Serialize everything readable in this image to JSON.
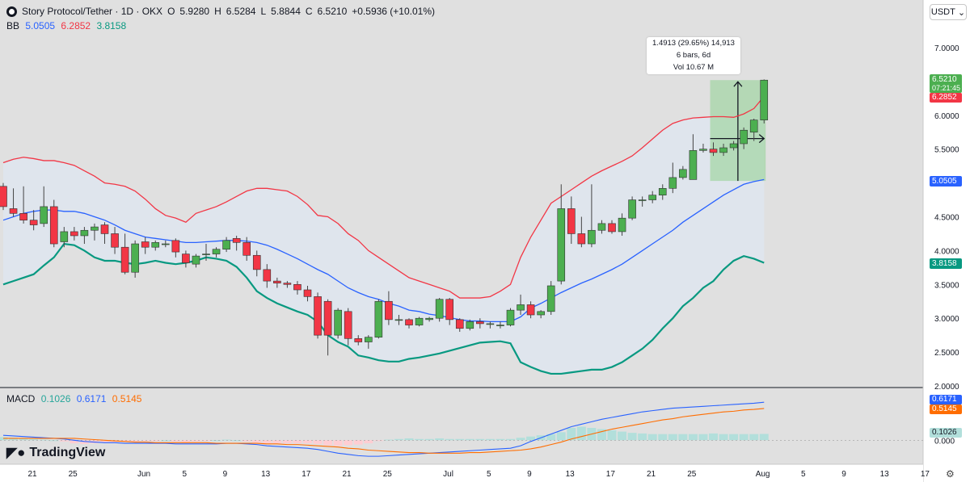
{
  "header": {
    "title": "Story Protocol/Tether · 1D · OKX",
    "open_label": "O",
    "open": "5.9280",
    "high_label": "H",
    "high": "6.5284",
    "low_label": "L",
    "low": "5.8844",
    "close_label": "C",
    "close": "6.5210",
    "change": "+0.5936 (+10.01%)"
  },
  "bb": {
    "label": "BB",
    "basis": "5.0505",
    "upper": "6.2852",
    "lower": "3.8158"
  },
  "macd": {
    "label": "MACD",
    "hist": "0.1026",
    "macd": "0.6171",
    "signal": "0.5145"
  },
  "currency": {
    "label": "USDT"
  },
  "measure": {
    "change": "1.4913 (29.65%) 14,913",
    "bars": "6 bars, 6d",
    "volume": "Vol 10.67 M"
  },
  "price_tags": {
    "close": "6.5210",
    "countdown": "07:21:45",
    "bb_upper": "6.2852",
    "bb_basis": "5.0505",
    "bb_lower": "3.8158",
    "macd": "0.6171",
    "signal": "0.5145",
    "hist": "0.1026"
  },
  "branding": {
    "name": "TradingView"
  },
  "colors": {
    "up": "#4caf50",
    "down": "#f23645",
    "bb_upper": "#f23645",
    "bb_basis": "#2962ff",
    "bb_lower": "#089981",
    "bb_fill": "#dfe6ee",
    "macd": "#2962ff",
    "signal": "#ff6d00",
    "hist_pos": "#26a69a",
    "hist_neg": "#ff5252",
    "measure_fill": "#a5d6a7"
  },
  "chart_data": {
    "type": "candlestick",
    "title": "Story Protocol/Tether · 1D · OKX",
    "price_axis": {
      "ticks": [
        "2.0000",
        "2.5000",
        "3.0000",
        "3.5000",
        "4.0000",
        "4.5000",
        "5.0000",
        "5.5000",
        "6.0000",
        "6.5000",
        "7.0000"
      ],
      "range": [
        2.0,
        7.0
      ]
    },
    "macd_axis": {
      "ticks": [
        "0.000"
      ],
      "range": [
        -0.35,
        0.75
      ]
    },
    "x_ticks": [
      {
        "label": "21",
        "idx": 0
      },
      {
        "label": "25",
        "idx": 4
      },
      {
        "label": "Jun",
        "idx": 11
      },
      {
        "label": "5",
        "idx": 15
      },
      {
        "label": "9",
        "idx": 19
      },
      {
        "label": "13",
        "idx": 23
      },
      {
        "label": "17",
        "idx": 27
      },
      {
        "label": "21",
        "idx": 31
      },
      {
        "label": "25",
        "idx": 35
      },
      {
        "label": "Jul",
        "idx": 41
      },
      {
        "label": "5",
        "idx": 45
      },
      {
        "label": "9",
        "idx": 49
      },
      {
        "label": "13",
        "idx": 53
      },
      {
        "label": "17",
        "idx": 57
      },
      {
        "label": "21",
        "idx": 61
      },
      {
        "label": "25",
        "idx": 65
      },
      {
        "label": "Aug",
        "idx": 72
      },
      {
        "label": "5",
        "idx": 76
      },
      {
        "label": "9",
        "idx": 80
      },
      {
        "label": "13",
        "idx": 84
      },
      {
        "label": "17",
        "idx": 88
      }
    ],
    "candles": [
      [
        4.95,
        4.65,
        5.0,
        4.6
      ],
      [
        4.62,
        4.55,
        4.92,
        4.5
      ],
      [
        4.55,
        4.45,
        4.95,
        4.4
      ],
      [
        4.45,
        4.38,
        4.6,
        4.3
      ],
      [
        4.4,
        4.65,
        4.95,
        4.35
      ],
      [
        4.65,
        4.1,
        4.75,
        4.05
      ],
      [
        4.13,
        4.28,
        4.35,
        4.05
      ],
      [
        4.28,
        4.22,
        4.35,
        4.15
      ],
      [
        4.22,
        4.3,
        4.35,
        4.1
      ],
      [
        4.3,
        4.35,
        4.4,
        4.15
      ],
      [
        4.38,
        4.25,
        4.42,
        4.1
      ],
      [
        4.25,
        4.05,
        4.35,
        3.95
      ],
      [
        4.05,
        3.68,
        4.25,
        3.65
      ],
      [
        3.68,
        4.1,
        4.15,
        3.6
      ],
      [
        4.13,
        4.05,
        4.2,
        3.95
      ],
      [
        4.05,
        4.12,
        4.15,
        4.0
      ],
      [
        4.1,
        4.1,
        4.15,
        4.05
      ],
      [
        4.15,
        3.98,
        4.18,
        3.9
      ],
      [
        3.95,
        3.82,
        4.0,
        3.75
      ],
      [
        3.8,
        3.92,
        3.95,
        3.75
      ],
      [
        3.95,
        3.95,
        4.1,
        3.85
      ],
      [
        3.95,
        4.02,
        4.05,
        3.9
      ],
      [
        4.02,
        4.15,
        4.2,
        3.98
      ],
      [
        4.18,
        4.12,
        4.22,
        4.0
      ],
      [
        4.12,
        3.93,
        4.2,
        3.85
      ],
      [
        3.93,
        3.72,
        4.0,
        3.62
      ],
      [
        3.72,
        3.55,
        3.8,
        3.45
      ],
      [
        3.55,
        3.52,
        3.6,
        3.45
      ],
      [
        3.52,
        3.5,
        3.55,
        3.45
      ],
      [
        3.5,
        3.42,
        3.55,
        3.35
      ],
      [
        3.42,
        3.32,
        3.48,
        3.25
      ],
      [
        3.32,
        2.75,
        3.38,
        2.7
      ],
      [
        3.25,
        2.75,
        3.28,
        2.45
      ],
      [
        2.75,
        3.12,
        3.15,
        2.7
      ],
      [
        3.1,
        2.7,
        3.15,
        2.6
      ],
      [
        2.7,
        2.65,
        2.75,
        2.6
      ],
      [
        2.65,
        2.72,
        2.75,
        2.55
      ],
      [
        2.72,
        3.25,
        3.28,
        2.7
      ],
      [
        3.25,
        2.98,
        3.4,
        2.9
      ],
      [
        2.98,
        2.98,
        3.05,
        2.9
      ],
      [
        2.98,
        2.9,
        3.0,
        2.85
      ],
      [
        2.9,
        3.0,
        3.02,
        2.88
      ],
      [
        2.98,
        3.0,
        3.02,
        2.95
      ],
      [
        3.0,
        3.28,
        3.3,
        2.95
      ],
      [
        3.28,
        2.98,
        3.3,
        2.9
      ],
      [
        2.98,
        2.85,
        3.0,
        2.8
      ],
      [
        2.85,
        2.95,
        2.98,
        2.82
      ],
      [
        2.95,
        2.92,
        3.0,
        2.85
      ],
      [
        2.92,
        2.92,
        2.95,
        2.85
      ],
      [
        2.9,
        2.9,
        2.95,
        2.85
      ],
      [
        2.9,
        3.12,
        3.15,
        2.88
      ],
      [
        3.12,
        3.2,
        3.35,
        3.05
      ],
      [
        3.2,
        3.05,
        3.25,
        3.0
      ],
      [
        3.05,
        3.1,
        3.12,
        3.0
      ],
      [
        3.1,
        3.48,
        3.55,
        3.05
      ],
      [
        3.55,
        4.62,
        4.98,
        3.5
      ],
      [
        4.62,
        4.25,
        4.8,
        4.1
      ],
      [
        4.25,
        4.1,
        4.5,
        4.05
      ],
      [
        4.1,
        4.3,
        4.98,
        4.05
      ],
      [
        4.3,
        4.4,
        4.45,
        4.25
      ],
      [
        4.4,
        4.28,
        4.45,
        4.25
      ],
      [
        4.28,
        4.48,
        4.55,
        4.22
      ],
      [
        4.48,
        4.75,
        4.8,
        4.45
      ],
      [
        4.75,
        4.75,
        4.8,
        4.65
      ],
      [
        4.75,
        4.82,
        4.88,
        4.7
      ],
      [
        4.82,
        4.92,
        4.98,
        4.75
      ],
      [
        4.92,
        5.08,
        5.3,
        4.85
      ],
      [
        5.08,
        5.2,
        5.25,
        5.05
      ],
      [
        5.05,
        5.48,
        5.72,
        5.05
      ],
      [
        5.48,
        5.5,
        5.58,
        5.45
      ],
      [
        5.5,
        5.45,
        5.6,
        5.4
      ],
      [
        5.45,
        5.52,
        5.58,
        5.4
      ],
      [
        5.52,
        5.58,
        5.62,
        5.48
      ],
      [
        5.58,
        5.78,
        5.82,
        5.5
      ],
      [
        5.75,
        5.93,
        5.95,
        5.62
      ],
      [
        5.93,
        6.52,
        6.53,
        5.88
      ]
    ],
    "bb_upper": [
      5.3,
      5.35,
      5.38,
      5.36,
      5.33,
      5.33,
      5.3,
      5.26,
      5.18,
      5.1,
      5.0,
      4.98,
      4.95,
      4.88,
      4.76,
      4.62,
      4.52,
      4.48,
      4.42,
      4.55,
      4.6,
      4.65,
      4.72,
      4.8,
      4.88,
      4.92,
      4.92,
      4.9,
      4.88,
      4.8,
      4.68,
      4.52,
      4.5,
      4.4,
      4.25,
      4.15,
      4.0,
      3.9,
      3.8,
      3.7,
      3.6,
      3.55,
      3.5,
      3.45,
      3.4,
      3.3,
      3.3,
      3.3,
      3.32,
      3.4,
      3.5,
      3.9,
      4.2,
      4.45,
      4.7,
      4.8,
      4.9,
      5.0,
      5.1,
      5.18,
      5.25,
      5.32,
      5.4,
      5.52,
      5.65,
      5.78,
      5.88,
      5.93,
      5.96,
      5.97,
      5.98,
      5.98,
      5.97,
      6.02,
      6.1,
      6.28
    ],
    "bb_basis": [
      4.45,
      4.5,
      4.55,
      4.58,
      4.6,
      4.6,
      4.58,
      4.58,
      4.55,
      4.5,
      4.45,
      4.38,
      4.3,
      4.25,
      4.2,
      4.18,
      4.16,
      4.14,
      4.12,
      4.12,
      4.13,
      4.14,
      4.15,
      4.15,
      4.14,
      4.12,
      4.08,
      4.02,
      3.95,
      3.88,
      3.8,
      3.72,
      3.65,
      3.55,
      3.45,
      3.38,
      3.32,
      3.28,
      3.22,
      3.18,
      3.12,
      3.1,
      3.06,
      3.04,
      3.01,
      2.98,
      2.96,
      2.96,
      2.95,
      2.95,
      2.95,
      3.02,
      3.15,
      3.22,
      3.3,
      3.38,
      3.45,
      3.52,
      3.58,
      3.65,
      3.72,
      3.8,
      3.9,
      4.0,
      4.1,
      4.2,
      4.3,
      4.42,
      4.52,
      4.62,
      4.72,
      4.82,
      4.9,
      4.98,
      5.02,
      5.05
    ],
    "bb_lower": [
      3.5,
      3.55,
      3.6,
      3.65,
      3.78,
      3.9,
      4.1,
      4.08,
      4.0,
      3.9,
      3.85,
      3.85,
      3.82,
      3.8,
      3.82,
      3.85,
      3.82,
      3.8,
      3.82,
      3.85,
      3.9,
      3.88,
      3.85,
      3.76,
      3.6,
      3.4,
      3.3,
      3.22,
      3.16,
      3.1,
      3.05,
      2.95,
      2.75,
      2.65,
      2.58,
      2.45,
      2.42,
      2.38,
      2.36,
      2.36,
      2.4,
      2.42,
      2.45,
      2.48,
      2.52,
      2.56,
      2.6,
      2.64,
      2.65,
      2.66,
      2.63,
      2.35,
      2.28,
      2.22,
      2.18,
      2.18,
      2.2,
      2.22,
      2.24,
      2.24,
      2.28,
      2.35,
      2.45,
      2.55,
      2.68,
      2.85,
      3.0,
      3.18,
      3.3,
      3.45,
      3.55,
      3.72,
      3.85,
      3.92,
      3.88,
      3.82
    ],
    "macd_hist": [
      0.05,
      0.04,
      0.03,
      0.02,
      0.01,
      0.0,
      -0.02,
      -0.05,
      -0.06,
      -0.05,
      -0.04,
      -0.03,
      -0.02,
      -0.02,
      -0.01,
      -0.01,
      0.0,
      -0.02,
      -0.03,
      -0.02,
      -0.01,
      0.0,
      0.01,
      0.0,
      -0.02,
      -0.04,
      -0.05,
      -0.05,
      -0.05,
      -0.05,
      -0.05,
      -0.06,
      -0.08,
      -0.09,
      -0.08,
      -0.07,
      -0.05,
      -0.01,
      0.01,
      0.02,
      0.03,
      0.02,
      0.02,
      0.03,
      0.02,
      0.02,
      0.02,
      0.02,
      0.02,
      0.02,
      0.02,
      0.04,
      0.06,
      0.08,
      0.1,
      0.13,
      0.2,
      0.22,
      0.2,
      0.18,
      0.16,
      0.14,
      0.12,
      0.11,
      0.1,
      0.1,
      0.1,
      0.1,
      0.1,
      0.1,
      0.11,
      0.1,
      0.1,
      0.1,
      0.1,
      0.1026
    ],
    "macd_line": [
      0.08,
      0.07,
      0.06,
      0.05,
      0.04,
      0.03,
      0.02,
      0.0,
      -0.02,
      -0.03,
      -0.04,
      -0.04,
      -0.05,
      -0.05,
      -0.05,
      -0.05,
      -0.05,
      -0.06,
      -0.06,
      -0.06,
      -0.06,
      -0.06,
      -0.05,
      -0.05,
      -0.06,
      -0.07,
      -0.09,
      -0.1,
      -0.11,
      -0.12,
      -0.13,
      -0.15,
      -0.18,
      -0.21,
      -0.23,
      -0.25,
      -0.26,
      -0.26,
      -0.25,
      -0.24,
      -0.23,
      -0.22,
      -0.21,
      -0.2,
      -0.19,
      -0.18,
      -0.17,
      -0.16,
      -0.15,
      -0.14,
      -0.13,
      -0.09,
      -0.02,
      0.04,
      0.1,
      0.16,
      0.22,
      0.26,
      0.3,
      0.34,
      0.37,
      0.4,
      0.43,
      0.46,
      0.48,
      0.5,
      0.52,
      0.53,
      0.54,
      0.55,
      0.56,
      0.57,
      0.58,
      0.59,
      0.6,
      0.6171
    ],
    "signal_line": [
      0.03,
      0.03,
      0.03,
      0.03,
      0.03,
      0.03,
      0.03,
      0.03,
      0.02,
      0.01,
      0.0,
      -0.01,
      -0.02,
      -0.03,
      -0.03,
      -0.04,
      -0.04,
      -0.04,
      -0.04,
      -0.04,
      -0.04,
      -0.05,
      -0.05,
      -0.05,
      -0.05,
      -0.05,
      -0.06,
      -0.06,
      -0.07,
      -0.07,
      -0.08,
      -0.09,
      -0.1,
      -0.11,
      -0.13,
      -0.14,
      -0.16,
      -0.17,
      -0.18,
      -0.19,
      -0.2,
      -0.2,
      -0.21,
      -0.21,
      -0.21,
      -0.21,
      -0.2,
      -0.2,
      -0.19,
      -0.18,
      -0.17,
      -0.16,
      -0.14,
      -0.11,
      -0.07,
      -0.03,
      0.02,
      0.06,
      0.1,
      0.14,
      0.18,
      0.21,
      0.24,
      0.27,
      0.3,
      0.33,
      0.35,
      0.38,
      0.4,
      0.42,
      0.44,
      0.46,
      0.47,
      0.49,
      0.5,
      0.5145
    ],
    "measure": {
      "from_idx": 70,
      "to_idx": 75,
      "from_price": 5.03,
      "to_price": 6.52
    }
  }
}
